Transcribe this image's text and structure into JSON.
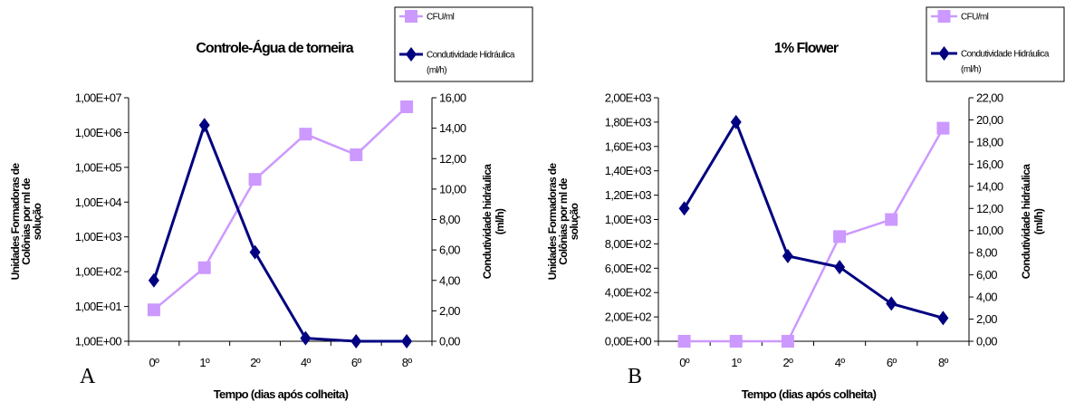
{
  "chart_data": [
    {
      "type": "line",
      "panel_label": "A",
      "title": "Controle-Água de torneira",
      "xlabel": "Tempo (dias após colheita)",
      "ylabel": [
        "Unidades Formadoras de",
        "Colônias por ml de",
        "solução"
      ],
      "y2label": [
        "Condutividade hidráulica",
        "(ml/h)"
      ],
      "categories": [
        "0º",
        "1º",
        "2º",
        "4º",
        "6º",
        "8º"
      ],
      "yscale": "log",
      "ylim": [
        1,
        10000000
      ],
      "y_tick_values": [
        1,
        10,
        100,
        1000,
        10000,
        100000,
        1000000,
        10000000
      ],
      "y_tick_labels": [
        "1,00E+00",
        "1,00E+01",
        "1,00E+02",
        "1,00E+03",
        "1,00E+04",
        "1,00E+05",
        "1,00E+06",
        "1,00E+07"
      ],
      "y2lim": [
        0,
        16
      ],
      "y2_tick_values": [
        0,
        2,
        4,
        6,
        8,
        10,
        12,
        14,
        16
      ],
      "y2_tick_labels": [
        "0,00",
        "2,00",
        "4,00",
        "6,00",
        "8,00",
        "10,00",
        "12,00",
        "14,00",
        "16,00"
      ],
      "series": [
        {
          "name": "CFU/ml",
          "axis": "left",
          "color": "#cc99ff",
          "marker": "square",
          "values": [
            8,
            130,
            45000,
            900000,
            230000,
            5500000
          ]
        },
        {
          "name": [
            "Condutividade Hidráulica",
            "(ml/h)"
          ],
          "axis": "right",
          "color": "#000080",
          "marker": "diamond",
          "values": [
            4.0,
            14.2,
            5.85,
            0.2,
            0.0,
            0.0
          ]
        }
      ],
      "legend_position": "top-right"
    },
    {
      "type": "line",
      "panel_label": "B",
      "title": "1% Flower",
      "xlabel": "Tempo (dias após colheita)",
      "ylabel": [
        "Unidades Formadoras de",
        "Colônias por ml de",
        "solução"
      ],
      "y2label": [
        "Condutividade hidráulica",
        "(ml/h)"
      ],
      "categories": [
        "0º",
        "1º",
        "2º",
        "4º",
        "6º",
        "8º"
      ],
      "yscale": "linear",
      "ylim": [
        0,
        2000
      ],
      "y_tick_values": [
        0,
        200,
        400,
        600,
        800,
        1000,
        1200,
        1400,
        1600,
        1800,
        2000
      ],
      "y_tick_labels": [
        "0,00E+00",
        "2,00E+02",
        "4,00E+02",
        "6,00E+02",
        "8,00E+02",
        "1,00E+03",
        "1,20E+03",
        "1,40E+03",
        "1,60E+03",
        "1,80E+03",
        "2,00E+03"
      ],
      "y2lim": [
        0,
        22
      ],
      "y2_tick_values": [
        0,
        2,
        4,
        6,
        8,
        10,
        12,
        14,
        16,
        18,
        20,
        22
      ],
      "y2_tick_labels": [
        "0,00",
        "2,00",
        "4,00",
        "6,00",
        "8,00",
        "10,00",
        "12,00",
        "14,00",
        "16,00",
        "18,00",
        "20,00",
        "22,00"
      ],
      "series": [
        {
          "name": "CFU/ml",
          "axis": "left",
          "color": "#cc99ff",
          "marker": "square",
          "values": [
            0,
            0,
            0,
            860,
            1000,
            1750
          ]
        },
        {
          "name": [
            "Condutividade Hidráulica",
            "(ml/h)"
          ],
          "axis": "right",
          "color": "#000080",
          "marker": "diamond",
          "values": [
            12.0,
            19.8,
            7.7,
            6.7,
            3.4,
            2.1
          ]
        }
      ],
      "legend_position": "top-right"
    }
  ]
}
